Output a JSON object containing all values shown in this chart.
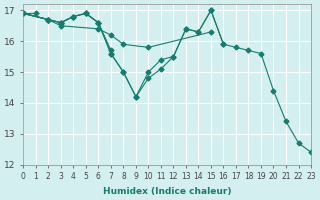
{
  "xlabel": "Humidex (Indice chaleur)",
  "ylabel": "",
  "bg_color": "#d4efef",
  "line_color": "#1a7a6e",
  "grid_color": "#ffffff",
  "xlim": [
    0,
    23
  ],
  "ylim": [
    12,
    17.2
  ],
  "yticks": [
    12,
    13,
    14,
    15,
    16,
    17
  ],
  "xticks": [
    0,
    1,
    2,
    3,
    4,
    5,
    6,
    7,
    8,
    9,
    10,
    11,
    12,
    13,
    14,
    15,
    16,
    17,
    18,
    19,
    20,
    21,
    22,
    23
  ],
  "series": [
    {
      "x": [
        0,
        1
      ],
      "y": [
        16.9,
        16.9
      ]
    },
    {
      "x": [
        0,
        2,
        3,
        4,
        5,
        6,
        7
      ],
      "y": [
        16.9,
        16.7,
        16.6,
        16.8,
        16.9,
        16.6,
        15.7
      ]
    },
    {
      "x": [
        0,
        2,
        3,
        4,
        5,
        6,
        7,
        8,
        9,
        10,
        11,
        12,
        13,
        14,
        15,
        16
      ],
      "y": [
        16.9,
        16.7,
        16.6,
        16.8,
        16.9,
        16.6,
        15.6,
        15.0,
        14.2,
        14.8,
        15.1,
        15.5,
        16.4,
        16.3,
        17.0,
        15.9
      ]
    },
    {
      "x": [
        0,
        2,
        3,
        4,
        5,
        6,
        7,
        8,
        9,
        10,
        11,
        12,
        13,
        14,
        15,
        16,
        17,
        18,
        19,
        20,
        21,
        22,
        23
      ],
      "y": [
        16.9,
        16.7,
        16.6,
        16.8,
        16.9,
        16.6,
        15.6,
        15.0,
        14.2,
        15.0,
        15.4,
        15.5,
        16.4,
        16.3,
        17.0,
        15.9,
        15.8,
        15.7,
        15.6,
        14.4,
        13.4,
        12.7,
        12.4
      ]
    },
    {
      "x": [
        0,
        2,
        3,
        6,
        7,
        8,
        10,
        15
      ],
      "y": [
        16.9,
        16.7,
        16.5,
        16.4,
        16.2,
        15.9,
        15.8,
        16.3
      ]
    }
  ]
}
